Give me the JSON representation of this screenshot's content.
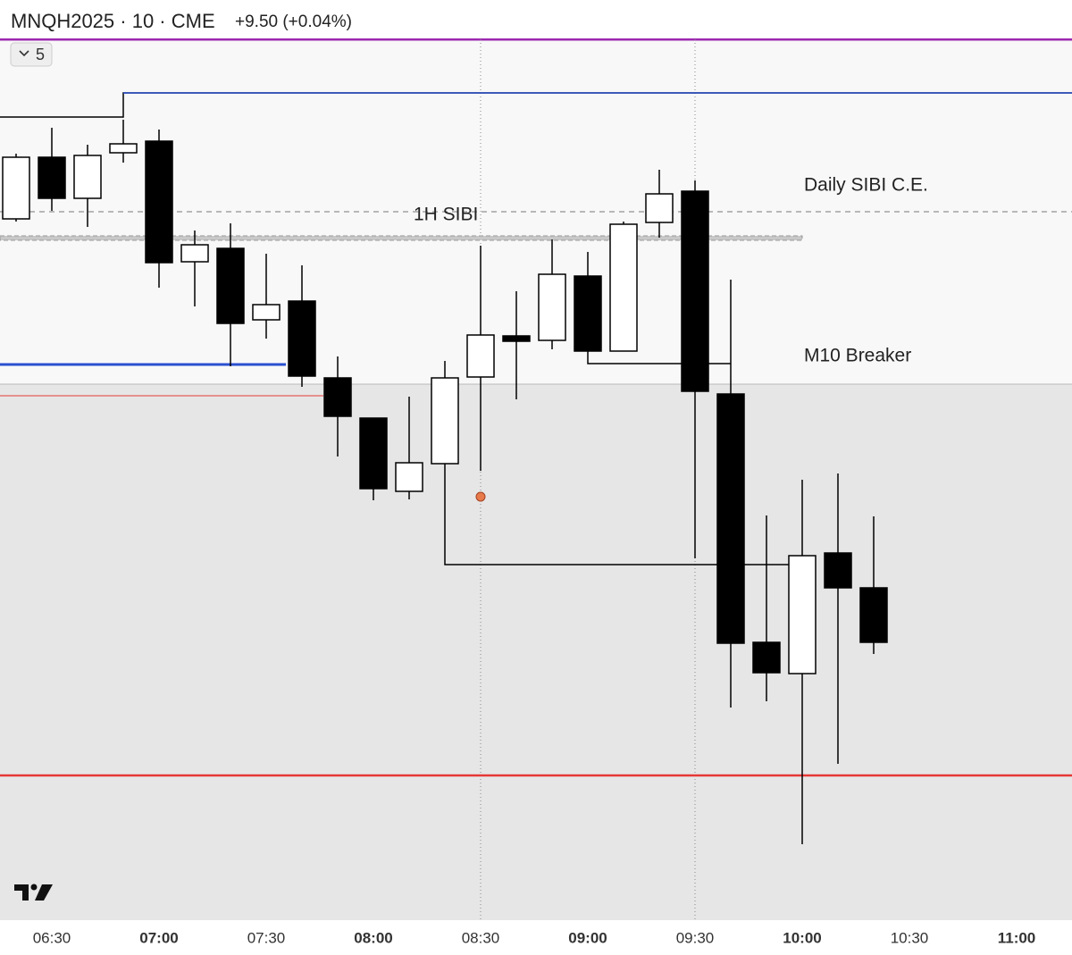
{
  "header": {
    "symbol": "MNQH2025 · 10 · CME",
    "change": "+9.50 (+0.04%)",
    "indicator_count": "5"
  },
  "annotations": {
    "daily": "Daily SIBI C.E.",
    "hourly": "1H SIBI",
    "breaker": "M10 Breaker"
  },
  "x_axis": {
    "labels": [
      "06:30",
      "07:00",
      "07:30",
      "08:00",
      "08:30",
      "09:00",
      "09:30",
      "10:00",
      "10:30",
      "11:00"
    ]
  }
}
